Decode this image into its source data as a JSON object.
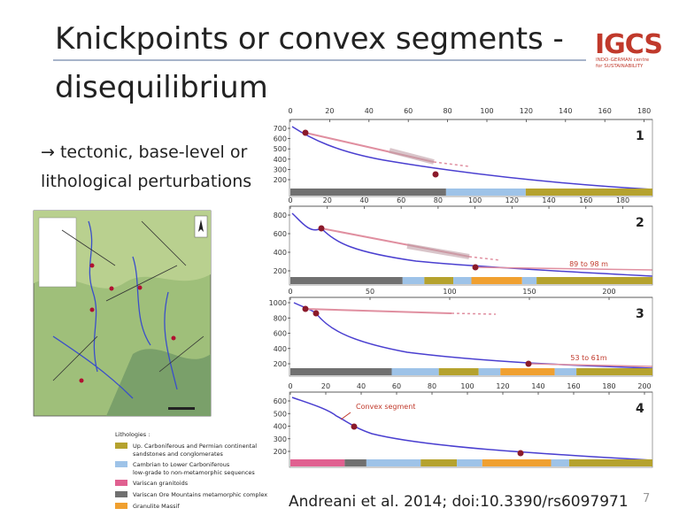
{
  "header": {
    "title_line1": "Knickpoints or convex segments -",
    "title_line2": "disequilibrium",
    "logo": "IGCS",
    "logo_sub1": "INDO-GERMAN centre",
    "logo_sub2": "for SUSTAINABILITY"
  },
  "bullet_lines": [
    "→ tectonic, base-level or",
    "lithological perturbations"
  ],
  "panels": [
    {
      "label": "1",
      "xticks": [
        0,
        20,
        40,
        60,
        80,
        100,
        120,
        140,
        160,
        180
      ],
      "yticks": [
        700,
        600,
        500,
        400,
        300,
        200
      ],
      "annotations": []
    },
    {
      "label": "2",
      "xticks": [
        0,
        20,
        40,
        60,
        80,
        100,
        120,
        140,
        160,
        180
      ],
      "yticks": [
        800,
        600,
        400,
        200
      ],
      "annotations": [
        "89 to 98 m"
      ]
    },
    {
      "label": "3",
      "xticks": [
        0,
        50,
        100,
        150,
        200
      ],
      "yticks": [
        1000,
        800,
        600,
        400,
        200
      ],
      "annotations": [
        "53 to 61m"
      ]
    },
    {
      "label": "4",
      "xticks": [
        0,
        20,
        40,
        60,
        80,
        100,
        120,
        140,
        160,
        180,
        200
      ],
      "yticks": [
        600,
        500,
        400,
        300,
        200
      ],
      "annotations": [
        "Convex segment"
      ]
    }
  ],
  "lithologies": {
    "title": "Lithologies :",
    "items": [
      [
        "Up. Carboniferous and Permian continental",
        "sandstones and conglomerates"
      ],
      [
        "Cambrian to Lower Carboniferous",
        "low-grade to non-metamorphic sequences"
      ],
      [
        "Variscan granitoids"
      ],
      [
        "Variscan Ore Mountains metamorphic complex"
      ],
      [
        "Granulite Massif"
      ]
    ]
  },
  "citation": "Andreani et al. 2014; doi:10.3390/rs6097971",
  "page_number": "7"
}
